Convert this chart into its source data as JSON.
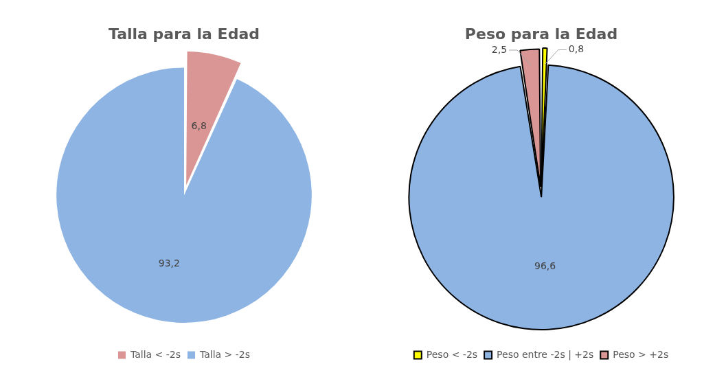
{
  "chart_data": [
    {
      "type": "pie",
      "title": "Talla para la Edad",
      "categories": [
        "Talla < -2s",
        "Talla > -2s"
      ],
      "values": [
        6.8,
        93.2
      ],
      "colors": [
        "#d99694",
        "#8eb4e3"
      ],
      "value_labels": [
        "6,8",
        "93,2"
      ],
      "legend": "bottom"
    },
    {
      "type": "pie",
      "title": "Peso para la Edad",
      "categories": [
        "Peso < -2s",
        "Peso entre -2s | +2s",
        "Peso > +2s"
      ],
      "values": [
        0.8,
        96.6,
        2.5
      ],
      "colors": [
        "#ffff00",
        "#8eb4e3",
        "#d99694"
      ],
      "value_labels": [
        "0,8",
        "96,6",
        "2,5"
      ],
      "legend": "bottom"
    }
  ]
}
